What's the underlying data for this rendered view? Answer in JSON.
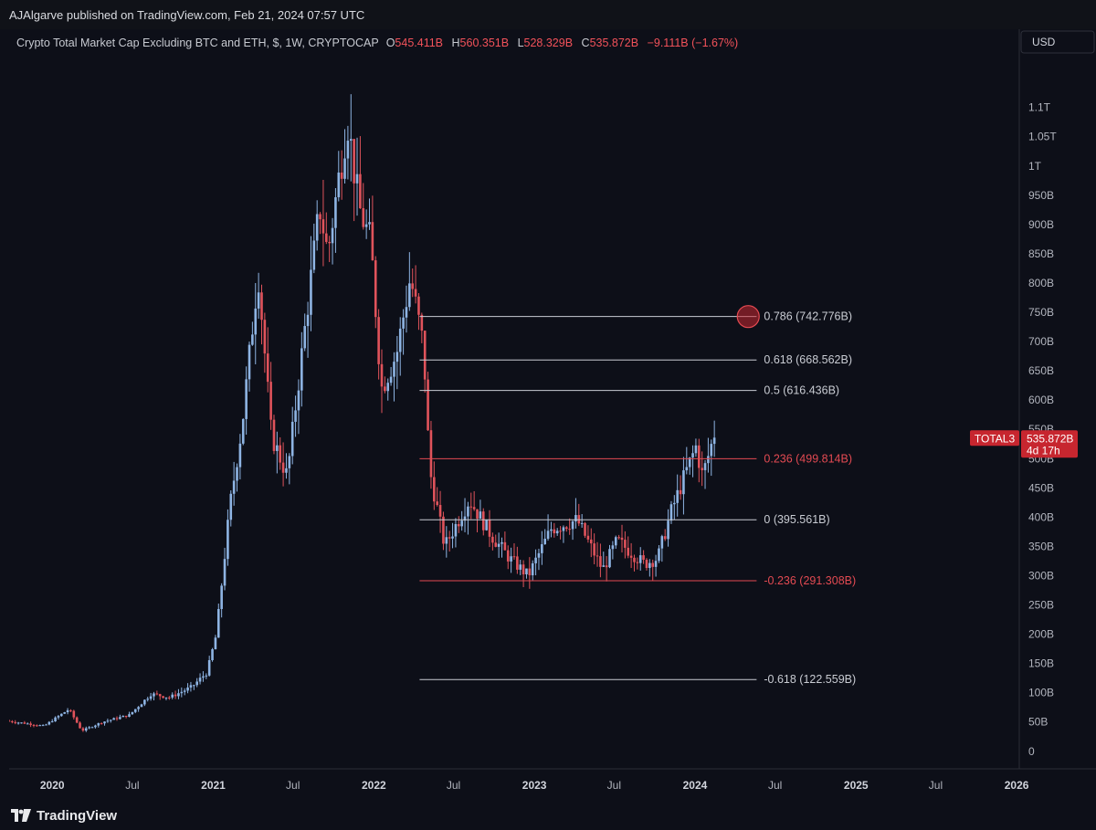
{
  "publisher": {
    "line": "AJAlgarve published on TradingView.com, Feb 21, 2024 07:57 UTC"
  },
  "footer": {
    "brand": "TradingView"
  },
  "colors": {
    "background": "#0d0f18",
    "up": "#8eb4e3",
    "down": "#e0535b",
    "fib_white": "#c9ccd3",
    "fib_red": "#e34a52",
    "axis_text": "#b2b5be",
    "badge_bg": "#c7262f"
  },
  "chart_data": {
    "type": "candlestick",
    "title": "Crypto Total Market Cap Excluding BTC and ETH, $, 1W, CRYPTOCAP",
    "ohlc": {
      "o_label": "O",
      "o_value": "545.411B",
      "h_label": "H",
      "h_value": "560.351B",
      "l_label": "L",
      "l_value": "528.329B",
      "c_label": "C",
      "c_value": "535.872B",
      "change": "−9.111B (−1.67%)"
    },
    "currency": "USD",
    "y_range": [
      -30,
      1190
    ],
    "y_ticks": [
      {
        "value": 1100,
        "label": "1.1T"
      },
      {
        "value": 1050,
        "label": "1.05T"
      },
      {
        "value": 1000,
        "label": "1T"
      },
      {
        "value": 950,
        "label": "950B"
      },
      {
        "value": 900,
        "label": "900B"
      },
      {
        "value": 850,
        "label": "850B"
      },
      {
        "value": 800,
        "label": "800B"
      },
      {
        "value": 750,
        "label": "750B"
      },
      {
        "value": 700,
        "label": "700B"
      },
      {
        "value": 650,
        "label": "650B"
      },
      {
        "value": 600,
        "label": "600B"
      },
      {
        "value": 550,
        "label": "550B"
      },
      {
        "value": 500,
        "label": "500B"
      },
      {
        "value": 450,
        "label": "450B"
      },
      {
        "value": 400,
        "label": "400B"
      },
      {
        "value": 350,
        "label": "350B"
      },
      {
        "value": 300,
        "label": "300B"
      },
      {
        "value": 250,
        "label": "250B"
      },
      {
        "value": 200,
        "label": "200B"
      },
      {
        "value": 150,
        "label": "150B"
      },
      {
        "value": 100,
        "label": "100B"
      },
      {
        "value": 50,
        "label": "50B"
      },
      {
        "value": 0,
        "label": "0"
      }
    ],
    "x_range": [
      "2019-09-25",
      "2026-01-05"
    ],
    "x_ticks": [
      {
        "date": "2020-01-01",
        "label": "2020",
        "major": true
      },
      {
        "date": "2020-07-01",
        "label": "Jul",
        "major": false
      },
      {
        "date": "2021-01-01",
        "label": "2021",
        "major": true
      },
      {
        "date": "2021-07-01",
        "label": "Jul",
        "major": false
      },
      {
        "date": "2022-01-01",
        "label": "2022",
        "major": true
      },
      {
        "date": "2022-07-01",
        "label": "Jul",
        "major": false
      },
      {
        "date": "2023-01-01",
        "label": "2023",
        "major": true
      },
      {
        "date": "2023-07-01",
        "label": "Jul",
        "major": false
      },
      {
        "date": "2024-01-01",
        "label": "2024",
        "major": true
      },
      {
        "date": "2024-07-01",
        "label": "Jul",
        "major": false
      },
      {
        "date": "2025-01-01",
        "label": "2025",
        "major": true
      },
      {
        "date": "2025-07-01",
        "label": "Jul",
        "major": false
      },
      {
        "date": "2026-01-01",
        "label": "2026",
        "major": true
      }
    ],
    "price_path": [
      [
        "2019-09-25",
        52
      ],
      [
        "2019-11-15",
        47
      ],
      [
        "2019-12-20",
        43
      ],
      [
        "2020-02-15",
        72
      ],
      [
        "2020-03-15",
        35
      ],
      [
        "2020-05-01",
        50
      ],
      [
        "2020-07-01",
        62
      ],
      [
        "2020-08-20",
        98
      ],
      [
        "2020-10-01",
        92
      ],
      [
        "2020-11-20",
        110
      ],
      [
        "2020-12-25",
        135
      ],
      [
        "2021-01-15",
        200
      ],
      [
        "2021-02-15",
        420
      ],
      [
        "2021-03-15",
        560
      ],
      [
        "2021-04-20",
        820
      ],
      [
        "2021-05-20",
        540
      ],
      [
        "2021-06-25",
        470
      ],
      [
        "2021-08-15",
        790
      ],
      [
        "2021-09-07",
        930
      ],
      [
        "2021-09-25",
        850
      ],
      [
        "2021-11-09",
        1080
      ],
      [
        "2021-12-05",
        930
      ],
      [
        "2022-01-01",
        870
      ],
      [
        "2022-01-25",
        620
      ],
      [
        "2022-03-01",
        680
      ],
      [
        "2022-04-01",
        810
      ],
      [
        "2022-05-01",
        690
      ],
      [
        "2022-05-15",
        480
      ],
      [
        "2022-06-18",
        350
      ],
      [
        "2022-08-13",
        430
      ],
      [
        "2022-10-01",
        370
      ],
      [
        "2022-11-12",
        330
      ],
      [
        "2022-12-25",
        300
      ],
      [
        "2023-02-15",
        380
      ],
      [
        "2023-04-15",
        395
      ],
      [
        "2023-06-12",
        310
      ],
      [
        "2023-07-15",
        360
      ],
      [
        "2023-09-15",
        320
      ],
      [
        "2023-10-15",
        330
      ],
      [
        "2023-11-15",
        410
      ],
      [
        "2023-12-15",
        470
      ],
      [
        "2024-01-10",
        520
      ],
      [
        "2024-01-25",
        470
      ],
      [
        "2024-02-19",
        536
      ]
    ],
    "fib_levels": [
      {
        "ratio": "0.786",
        "value": 742.776,
        "label": "0.786 (742.776B)",
        "color": "white",
        "start": "2022-04-15"
      },
      {
        "ratio": "0.618",
        "value": 668.562,
        "label": "0.618 (668.562B)",
        "color": "white",
        "start": "2022-04-15"
      },
      {
        "ratio": "0.5",
        "value": 616.436,
        "label": "0.5 (616.436B)",
        "color": "white",
        "start": "2022-04-15"
      },
      {
        "ratio": "0.236",
        "value": 499.814,
        "label": "0.236 (499.814B)",
        "color": "red",
        "start": "2022-04-15"
      },
      {
        "ratio": "0",
        "value": 395.561,
        "label": "0 (395.561B)",
        "color": "white",
        "start": "2022-04-15"
      },
      {
        "ratio": "-0.236",
        "value": 291.308,
        "label": "-0.236 (291.308B)",
        "color": "red",
        "start": "2022-04-15"
      },
      {
        "ratio": "-0.618",
        "value": 122.559,
        "label": "-0.618 (122.559B)",
        "color": "white",
        "start": "2022-04-15"
      }
    ],
    "fib_end": "2024-05-20",
    "target_marker": {
      "date": "2024-05-01",
      "value": 742.776
    },
    "last_price": {
      "symbol": "TOTAL3",
      "value": 535.872,
      "label": "535.872B",
      "countdown": "4d 17h"
    }
  }
}
